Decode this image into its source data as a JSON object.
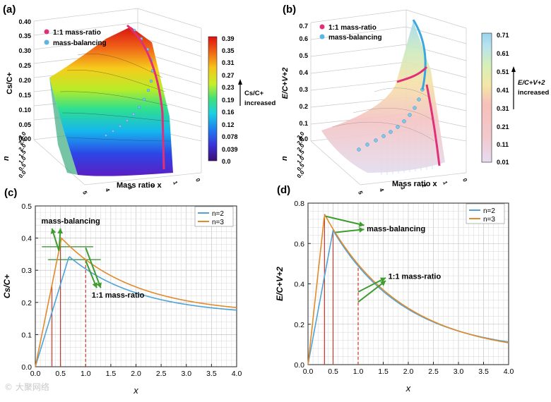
{
  "panels": {
    "a": {
      "label": "(a)",
      "legend": [
        "1:1 mass-ratio",
        "mass-balancing"
      ],
      "zlabel": "Cs/C+",
      "zticks": [
        "0.00",
        "0.05",
        "0.10",
        "0.15",
        "0.20",
        "0.25",
        "0.30",
        "0.35",
        "0.40"
      ],
      "ylabel": "n",
      "yticks": [
        "0.0",
        "0.5",
        "1.0",
        "1.5",
        "2.0",
        "2.5",
        "3.0"
      ],
      "xlabel": "Mass ratio x",
      "xticks": [
        "5",
        "4",
        "3",
        "2",
        "1",
        "0"
      ],
      "colorbar": {
        "ticks": [
          "0.39",
          "0.35",
          "0.31",
          "0.27",
          "0.23",
          "0.19",
          "0.16",
          "0.12",
          "0.078",
          "0.039",
          "0.0"
        ],
        "note_line1": "Cs/C+",
        "note_line2": "increased"
      }
    },
    "b": {
      "label": "(b)",
      "legend": [
        "1:1 mass-ratio",
        "mass-balancing"
      ],
      "zlabel": "E/C+V+2",
      "zticks": [
        "0.0",
        "0.1",
        "0.2",
        "0.3",
        "0.4",
        "0.5",
        "0.6",
        "0.7"
      ],
      "ylabel": "n",
      "yticks": [
        "0.0",
        "0.5",
        "1.0",
        "1.5",
        "2.0",
        "2.5",
        "3.0"
      ],
      "xlabel": "Mass ratio x",
      "xticks": [
        "5",
        "4",
        "3",
        "2",
        "1",
        "0"
      ],
      "colorbar": {
        "ticks": [
          "0.71",
          "0.61",
          "0.51",
          "0.41",
          "0.31",
          "0.21",
          "0.11",
          "0.01"
        ],
        "note_line1": "E/C+V+2",
        "note_line2": "increased"
      }
    }
  },
  "chart_data": [
    {
      "id": "c",
      "type": "line",
      "label": "(c)",
      "xlabel": "x",
      "ylabel": "Cs/C+",
      "xlim": [
        0,
        4
      ],
      "ylim": [
        0,
        0.5
      ],
      "xticks": [
        "0.0",
        "0.5",
        "1.0",
        "1.5",
        "2.0",
        "2.5",
        "3.0",
        "3.5",
        "4.0"
      ],
      "yticks": [
        "0.0",
        "0.1",
        "0.2",
        "0.3",
        "0.4",
        "0.5"
      ],
      "series": [
        {
          "name": "n=2",
          "color": "#4fa3d6",
          "peak": {
            "x": 0.67,
            "y": 0.343
          },
          "end": {
            "x": 4.0,
            "y": 0.176
          }
        },
        {
          "name": "n=3",
          "color": "#e08a2a",
          "peak": {
            "x": 0.52,
            "y": 0.4
          },
          "end": {
            "x": 4.0,
            "y": 0.184
          }
        }
      ],
      "annotations": [
        {
          "text": "mass-balancing",
          "target_x": 0.5
        },
        {
          "text": "1:1 mass-ratio",
          "target_x": 1.0
        }
      ],
      "vlines": [
        {
          "x": 0.33,
          "style": "solid",
          "color": "#c0392b"
        },
        {
          "x": 0.5,
          "style": "solid",
          "color": "#c0392b"
        },
        {
          "x": 1.0,
          "style": "dashed",
          "color": "#c0392b"
        }
      ],
      "hlines": [
        {
          "y": 0.373,
          "x0": 0.13,
          "x1": 1.15
        },
        {
          "y": 0.333,
          "x0": 0.25,
          "x1": 1.3
        }
      ]
    },
    {
      "id": "d",
      "type": "line",
      "label": "(d)",
      "xlabel": "x",
      "ylabel": "E/C+V+2",
      "xlim": [
        0,
        4
      ],
      "ylim": [
        0,
        0.8
      ],
      "xticks": [
        "0.0",
        "0.5",
        "1.0",
        "1.5",
        "2.0",
        "2.5",
        "3.0",
        "3.5",
        "4.0"
      ],
      "yticks": [
        "0.0",
        "0.2",
        "0.4",
        "0.6",
        "0.8"
      ],
      "series": [
        {
          "name": "n=2",
          "color": "#4fa3d6",
          "peak": {
            "x": 0.5,
            "y": 0.665
          },
          "end": {
            "x": 4.0,
            "y": 0.112
          }
        },
        {
          "name": "n=3",
          "color": "#e08a2a",
          "peak": {
            "x": 0.33,
            "y": 0.745
          },
          "end": {
            "x": 4.0,
            "y": 0.108
          }
        }
      ],
      "annotations": [
        {
          "text": "mass-balancing",
          "target_x": 0.5
        },
        {
          "text": "1:1 mass-ratio",
          "target_x": 1.0
        }
      ],
      "vlines": [
        {
          "x": 0.33,
          "style": "solid",
          "color": "#c0392b"
        },
        {
          "x": 0.5,
          "style": "solid",
          "color": "#c0392b"
        },
        {
          "x": 1.0,
          "style": "dashed",
          "color": "#c0392b"
        }
      ]
    }
  ],
  "watermark": "© 大聚网络"
}
